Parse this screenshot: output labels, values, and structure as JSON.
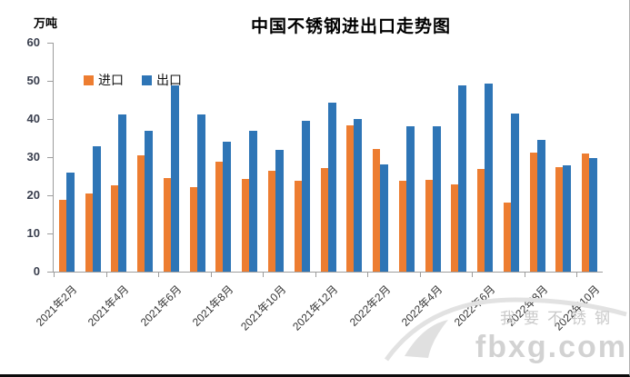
{
  "page": {
    "background": "#ffffff"
  },
  "chart_data": {
    "type": "bar",
    "title": "中国不锈钢进出口走势图",
    "unit_label": "万吨",
    "categories": [
      "2021年2月",
      "2021年3月",
      "2021年4月",
      "2021年5月",
      "2021年6月",
      "2021年7月",
      "2021年8月",
      "2021年9月",
      "2021年10月",
      "2021年11月",
      "2021年12月",
      "2022年1月",
      "2022年2月",
      "2022年3月",
      "2022年4月",
      "2022年5月",
      "2022年6月",
      "2022年7月",
      "2022年8月",
      "2022年9月",
      "2022年10月"
    ],
    "x_tick_label_interval": 2,
    "x_tick_labels_visible": [
      "2021年2月",
      "2021年4月",
      "2021年6月",
      "2021年8月",
      "2021年10月",
      "2021年12月",
      "2022年2月",
      "2022年4月",
      "2022年6月",
      "2022年8月",
      "2022年10月"
    ],
    "series": [
      {
        "name": "进口",
        "color": "#ED7D31",
        "values": [
          18.9,
          20.5,
          22.6,
          30.5,
          24.6,
          22.2,
          28.9,
          24.3,
          26.4,
          23.9,
          27.1,
          38.3,
          32.1,
          23.9,
          24.0,
          22.9,
          27.0,
          18.2,
          31.2,
          27.5,
          31.0
        ]
      },
      {
        "name": "出口",
        "color": "#2E75B6",
        "values": [
          26.0,
          32.9,
          41.2,
          36.8,
          48.9,
          41.1,
          34.1,
          37.0,
          31.8,
          39.5,
          44.2,
          40.1,
          28.1,
          38.0,
          38.1,
          48.9,
          49.2,
          41.5,
          34.5,
          27.9,
          29.8
        ]
      }
    ],
    "ylim": [
      0,
      60
    ],
    "yticks": [
      0,
      10,
      20,
      30,
      40,
      50,
      60
    ],
    "grid": false,
    "legend_position": "top-left-inside",
    "axis_color": "#9c9c9c"
  },
  "watermark": {
    "line1": "我要不锈钢",
    "line2": "fbxg.com"
  }
}
